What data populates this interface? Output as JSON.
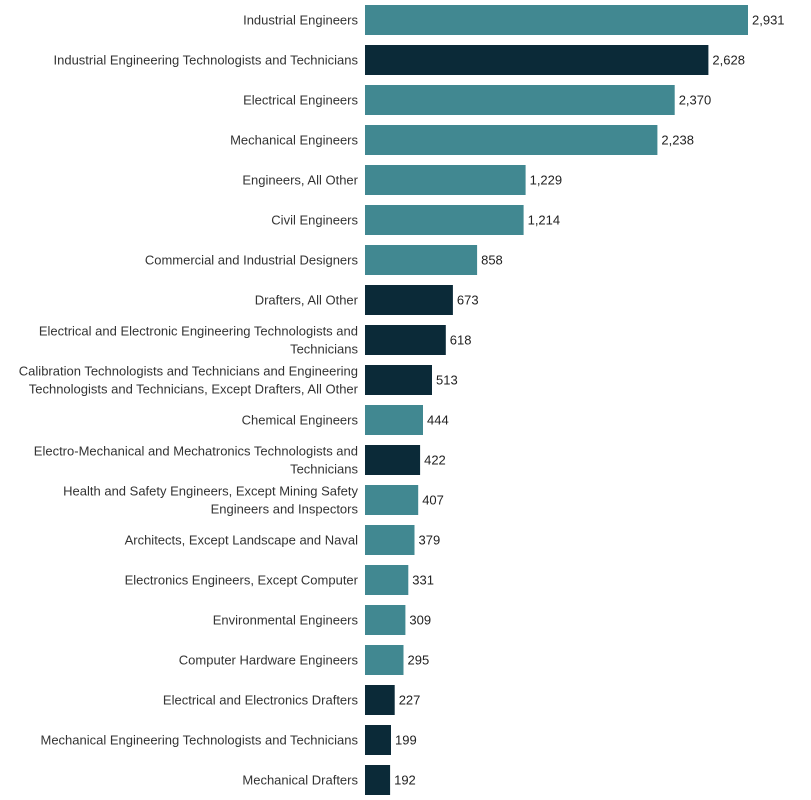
{
  "colors": {
    "engineers": "#418891",
    "technicians": "#0b2a38"
  },
  "chart_data": {
    "type": "bar",
    "orientation": "horizontal",
    "title": "",
    "xlabel": "",
    "ylabel": "",
    "xlim": [
      0,
      3000
    ],
    "grid": false,
    "legend": "none",
    "bars": [
      {
        "lines": [
          "Industrial Engineers"
        ],
        "value": 2931,
        "label": "2,931",
        "group": "engineers"
      },
      {
        "lines": [
          "Industrial Engineering Technologists and Technicians"
        ],
        "value": 2628,
        "label": "2,628",
        "group": "technicians"
      },
      {
        "lines": [
          "Electrical Engineers"
        ],
        "value": 2370,
        "label": "2,370",
        "group": "engineers"
      },
      {
        "lines": [
          "Mechanical Engineers"
        ],
        "value": 2238,
        "label": "2,238",
        "group": "engineers"
      },
      {
        "lines": [
          "Engineers, All Other"
        ],
        "value": 1229,
        "label": "1,229",
        "group": "engineers"
      },
      {
        "lines": [
          "Civil Engineers"
        ],
        "value": 1214,
        "label": "1,214",
        "group": "engineers"
      },
      {
        "lines": [
          "Commercial and Industrial Designers"
        ],
        "value": 858,
        "label": "858",
        "group": "engineers"
      },
      {
        "lines": [
          "Drafters, All Other"
        ],
        "value": 673,
        "label": "673",
        "group": "technicians"
      },
      {
        "lines": [
          "Electrical and Electronic Engineering Technologists and",
          "Technicians"
        ],
        "value": 618,
        "label": "618",
        "group": "technicians"
      },
      {
        "lines": [
          "Calibration Technologists and Technicians and Engineering",
          "Technologists and Technicians, Except Drafters, All Other"
        ],
        "value": 513,
        "label": "513",
        "group": "technicians"
      },
      {
        "lines": [
          "Chemical Engineers"
        ],
        "value": 444,
        "label": "444",
        "group": "engineers"
      },
      {
        "lines": [
          "Electro-Mechanical and Mechatronics Technologists and",
          "Technicians"
        ],
        "value": 422,
        "label": "422",
        "group": "technicians"
      },
      {
        "lines": [
          "Health and Safety Engineers, Except Mining Safety",
          "Engineers and Inspectors"
        ],
        "value": 407,
        "label": "407",
        "group": "engineers"
      },
      {
        "lines": [
          "Architects, Except Landscape and Naval"
        ],
        "value": 379,
        "label": "379",
        "group": "engineers"
      },
      {
        "lines": [
          "Electronics Engineers, Except Computer"
        ],
        "value": 331,
        "label": "331",
        "group": "engineers"
      },
      {
        "lines": [
          "Environmental Engineers"
        ],
        "value": 309,
        "label": "309",
        "group": "engineers"
      },
      {
        "lines": [
          "Computer Hardware Engineers"
        ],
        "value": 295,
        "label": "295",
        "group": "engineers"
      },
      {
        "lines": [
          "Electrical and Electronics Drafters"
        ],
        "value": 227,
        "label": "227",
        "group": "technicians"
      },
      {
        "lines": [
          "Mechanical Engineering Technologists and Technicians"
        ],
        "value": 199,
        "label": "199",
        "group": "technicians"
      },
      {
        "lines": [
          "Mechanical Drafters"
        ],
        "value": 192,
        "label": "192",
        "group": "technicians"
      }
    ]
  }
}
